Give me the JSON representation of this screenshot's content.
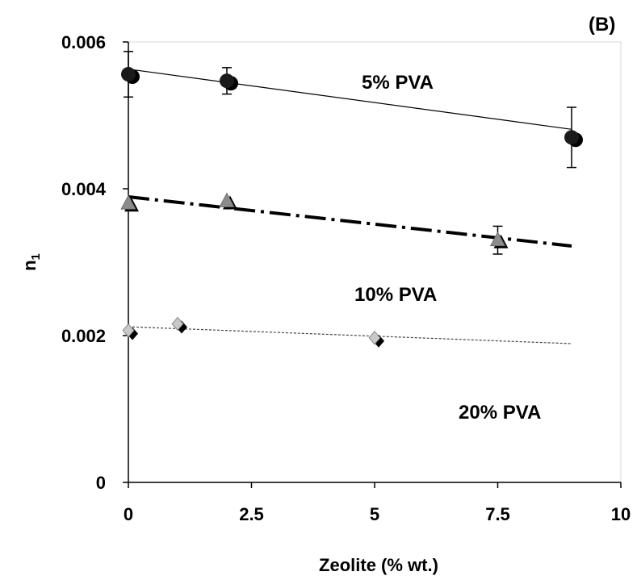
{
  "chart_data": {
    "type": "scatter",
    "panel_label": "(B)",
    "xlabel": "Zeolite (% wt.)",
    "ylabel": "n",
    "ylabel_subscript": "1",
    "xlim": [
      0,
      10
    ],
    "ylim": [
      0,
      0.006
    ],
    "x_ticks": [
      "0",
      "2.5",
      "5",
      "7.5",
      "10"
    ],
    "y_ticks": [
      "0",
      "0.002",
      "0.004",
      "0.006"
    ],
    "grid": false,
    "series": [
      {
        "name": "5% PVA",
        "marker": "circle",
        "marker_color": "#1a1a1a",
        "line_style": "solid",
        "x": [
          0,
          2,
          9
        ],
        "y": [
          0.00556,
          0.00547,
          0.0047
        ],
        "error": [
          0.00031,
          0.00018,
          0.00041
        ],
        "fit": {
          "x": [
            0,
            9
          ],
          "y": [
            0.00563,
            0.00481
          ]
        }
      },
      {
        "name": "10% PVA",
        "marker": "triangle",
        "marker_color": "#8c8c8c",
        "line_style": "dash-dot",
        "x": [
          0,
          2,
          7.5
        ],
        "y": [
          0.0038,
          0.00383,
          0.0033
        ],
        "error": [
          0,
          0,
          0.00019
        ],
        "fit": {
          "x": [
            0,
            9
          ],
          "y": [
            0.00389,
            0.00322
          ]
        }
      },
      {
        "name": "20% PVA",
        "marker": "diamond",
        "marker_color": "#c8c8c8",
        "line_style": "dotted",
        "x": [
          0,
          1,
          5
        ],
        "y": [
          0.00207,
          0.00216,
          0.00197
        ],
        "error": [
          0,
          0,
          0
        ],
        "fit": {
          "x": [
            0,
            9
          ],
          "y": [
            0.00212,
            0.00189
          ]
        }
      }
    ]
  }
}
